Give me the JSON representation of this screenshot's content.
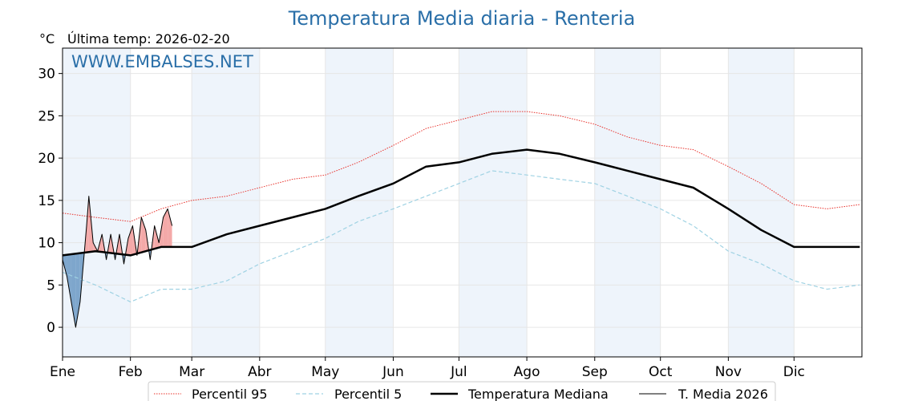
{
  "chart_data": {
    "type": "line",
    "title": "Temperatura Media diaria - Renteria",
    "ylabel": "°C",
    "last_temp_label": "Última temp: 2026-02-20",
    "watermark": "WWW.EMBALSES.NET",
    "ylim": [
      -3.5,
      33
    ],
    "yticks": [
      0,
      5,
      10,
      15,
      20,
      25,
      30
    ],
    "xlim": [
      0,
      365
    ],
    "month_labels": [
      "Ene",
      "Feb",
      "Mar",
      "Abr",
      "May",
      "Jun",
      "Jul",
      "Ago",
      "Sep",
      "Oct",
      "Nov",
      "Dic"
    ],
    "month_starts": [
      0,
      31,
      59,
      90,
      120,
      151,
      181,
      212,
      243,
      273,
      304,
      334
    ],
    "grid": true,
    "legend_position": "bottom",
    "colors": {
      "title": "#2a6fa8",
      "p95": "#e8302a",
      "p5": "#9fd2e3",
      "median": "#000000",
      "current": "#000000",
      "above_fill": "#f4a9a8",
      "below_fill": "#7ea6cc",
      "band": "#eef4fb"
    },
    "series": [
      {
        "name": "Percentil 95",
        "style": "dotted-red",
        "x": [
          0,
          15,
          31,
          45,
          59,
          75,
          90,
          105,
          120,
          135,
          151,
          166,
          181,
          196,
          212,
          227,
          243,
          258,
          273,
          288,
          304,
          319,
          334,
          349,
          364
        ],
        "y": [
          13.5,
          13.0,
          12.5,
          14.0,
          15.0,
          15.5,
          16.5,
          17.5,
          18.0,
          19.5,
          21.5,
          23.5,
          24.5,
          25.5,
          25.5,
          25.0,
          24.0,
          22.5,
          21.5,
          21.0,
          19.0,
          17.0,
          14.5,
          14.0,
          14.5
        ]
      },
      {
        "name": "Percentil 5",
        "style": "dashed-lightblue",
        "x": [
          0,
          15,
          31,
          45,
          59,
          75,
          90,
          105,
          120,
          135,
          151,
          166,
          181,
          196,
          212,
          227,
          243,
          258,
          273,
          288,
          304,
          319,
          334,
          349,
          364
        ],
        "y": [
          6.5,
          5.0,
          3.0,
          4.5,
          4.5,
          5.5,
          7.5,
          9.0,
          10.5,
          12.5,
          14.0,
          15.5,
          17.0,
          18.5,
          18.0,
          17.5,
          17.0,
          15.5,
          14.0,
          12.0,
          9.0,
          7.5,
          5.5,
          4.5,
          5.0
        ]
      },
      {
        "name": "Temperatura Mediana",
        "style": "thick-black",
        "x": [
          0,
          15,
          31,
          45,
          59,
          75,
          90,
          105,
          120,
          135,
          151,
          166,
          181,
          196,
          212,
          227,
          243,
          258,
          273,
          288,
          304,
          319,
          334,
          349,
          364
        ],
        "y": [
          8.5,
          9.0,
          8.5,
          9.5,
          9.5,
          11.0,
          12.0,
          13.0,
          14.0,
          15.5,
          17.0,
          19.0,
          19.5,
          20.5,
          21.0,
          20.5,
          19.5,
          18.5,
          17.5,
          16.5,
          14.0,
          11.5,
          9.5,
          9.5,
          9.5
        ]
      },
      {
        "name": "T. Media 2026",
        "style": "thin-black",
        "x": [
          0,
          2,
          4,
          6,
          8,
          10,
          11,
          12,
          14,
          16,
          18,
          20,
          22,
          24,
          26,
          28,
          30,
          32,
          34,
          36,
          38,
          40,
          42,
          44,
          46,
          48,
          50
        ],
        "y": [
          8.0,
          6.0,
          3.0,
          0.0,
          3.0,
          9.0,
          12.0,
          15.5,
          10.0,
          9.0,
          11.0,
          8.0,
          11.0,
          8.0,
          11.0,
          7.5,
          10.5,
          12.0,
          8.5,
          13.0,
          11.5,
          8.0,
          12.0,
          10.0,
          13.0,
          14.0,
          12.0
        ]
      }
    ]
  }
}
